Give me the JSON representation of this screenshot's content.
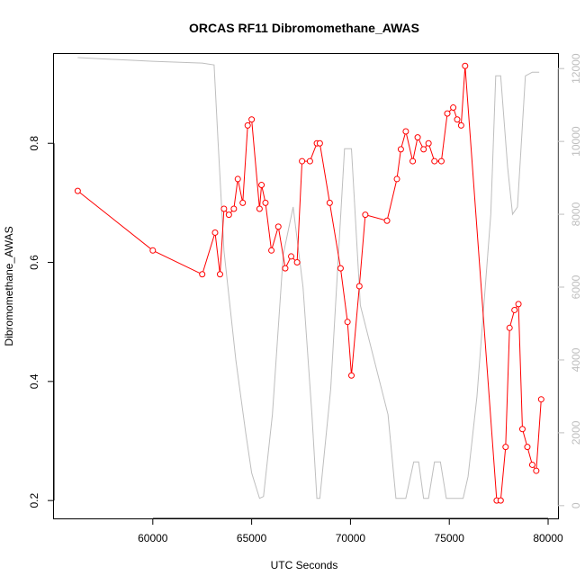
{
  "chart_data": {
    "type": "line",
    "title": "ORCAS RF11 Dibromomethane_AWAS",
    "xlabel": "UTC Seconds",
    "ylabel": "Dibromomethane_AWAS",
    "xlim": [
      55000,
      80500
    ],
    "ylim": [
      0.17,
      0.95
    ],
    "y2lim": [
      -350,
      12400
    ],
    "x_ticks": [
      60000,
      65000,
      70000,
      75000,
      80000
    ],
    "y_ticks": [
      0.2,
      0.4,
      0.6,
      0.8
    ],
    "y2_ticks": [
      0,
      2000,
      4000,
      6000,
      8000,
      10000,
      12000
    ],
    "grid": false,
    "series": [
      {
        "name": "",
        "axis": "left",
        "color": "#ff0000",
        "marker": "open-circle",
        "points": [
          [
            56200,
            0.72
          ],
          [
            60000,
            0.62
          ],
          [
            62500,
            0.58
          ],
          [
            63150,
            0.65
          ],
          [
            63400,
            0.58
          ],
          [
            63600,
            0.69
          ],
          [
            63850,
            0.68
          ],
          [
            64100,
            0.69
          ],
          [
            64300,
            0.74
          ],
          [
            64550,
            0.7
          ],
          [
            64800,
            0.83
          ],
          [
            65000,
            0.84
          ],
          [
            65400,
            0.69
          ],
          [
            65500,
            0.73
          ],
          [
            65700,
            0.7
          ],
          [
            66000,
            0.62
          ],
          [
            66350,
            0.66
          ],
          [
            66700,
            0.59
          ],
          [
            67000,
            0.61
          ],
          [
            67300,
            0.6
          ],
          [
            67550,
            0.77
          ],
          [
            67950,
            0.77
          ],
          [
            68300,
            0.8
          ],
          [
            68450,
            0.8
          ],
          [
            68950,
            0.7
          ],
          [
            69500,
            0.59
          ],
          [
            69850,
            0.5
          ],
          [
            70050,
            0.41
          ],
          [
            70450,
            0.56
          ],
          [
            70750,
            0.68
          ],
          [
            71850,
            0.67
          ],
          [
            72350,
            0.74
          ],
          [
            72550,
            0.79
          ],
          [
            72800,
            0.82
          ],
          [
            73150,
            0.77
          ],
          [
            73400,
            0.81
          ],
          [
            73700,
            0.79
          ],
          [
            73950,
            0.8
          ],
          [
            74250,
            0.77
          ],
          [
            74600,
            0.77
          ],
          [
            74900,
            0.85
          ],
          [
            75200,
            0.86
          ],
          [
            75400,
            0.84
          ],
          [
            75600,
            0.83
          ],
          [
            75800,
            0.93
          ],
          [
            77400,
            0.2
          ],
          [
            77600,
            0.2
          ],
          [
            77850,
            0.29
          ],
          [
            78050,
            0.49
          ],
          [
            78300,
            0.52
          ],
          [
            78500,
            0.53
          ],
          [
            78700,
            0.32
          ],
          [
            78950,
            0.29
          ],
          [
            79200,
            0.26
          ],
          [
            79400,
            0.25
          ],
          [
            79650,
            0.37
          ]
        ]
      },
      {
        "name": "",
        "axis": "right",
        "color": "#bebebe",
        "marker": "none",
        "points": [
          [
            56200,
            12300
          ],
          [
            60000,
            12200
          ],
          [
            62500,
            12150
          ],
          [
            63100,
            12100
          ],
          [
            63300,
            10000
          ],
          [
            63600,
            7000
          ],
          [
            64200,
            4000
          ],
          [
            64700,
            2000
          ],
          [
            65000,
            900
          ],
          [
            65400,
            200
          ],
          [
            65600,
            250
          ],
          [
            66050,
            2500
          ],
          [
            66600,
            6900
          ],
          [
            67100,
            8200
          ],
          [
            67600,
            6000
          ],
          [
            68050,
            2500
          ],
          [
            68300,
            200
          ],
          [
            68450,
            200
          ],
          [
            69000,
            3200
          ],
          [
            69700,
            9800
          ],
          [
            70050,
            9800
          ],
          [
            70500,
            5500
          ],
          [
            71200,
            4000
          ],
          [
            71900,
            2500
          ],
          [
            72300,
            200
          ],
          [
            72800,
            200
          ],
          [
            73200,
            1200
          ],
          [
            73450,
            1200
          ],
          [
            73700,
            200
          ],
          [
            73950,
            200
          ],
          [
            74250,
            1200
          ],
          [
            74550,
            1200
          ],
          [
            74850,
            200
          ],
          [
            75700,
            200
          ],
          [
            75950,
            800
          ],
          [
            76400,
            3000
          ],
          [
            77100,
            8000
          ],
          [
            77350,
            11800
          ],
          [
            77600,
            11800
          ],
          [
            77950,
            9300
          ],
          [
            78200,
            8000
          ],
          [
            78450,
            8200
          ],
          [
            78850,
            11800
          ],
          [
            79200,
            11900
          ],
          [
            79550,
            11900
          ]
        ]
      }
    ]
  }
}
